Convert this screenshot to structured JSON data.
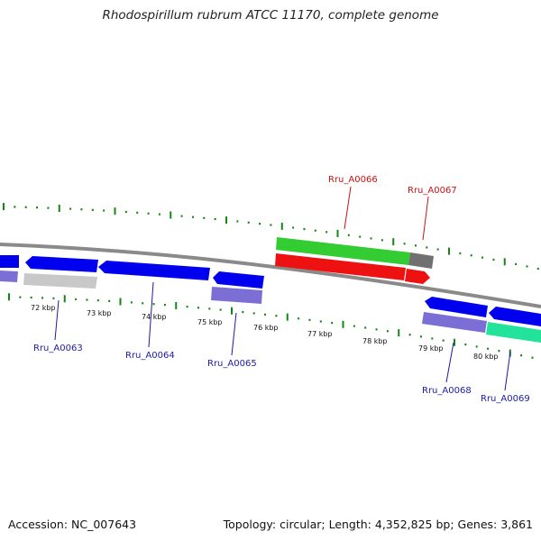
{
  "title": "Rhodospirillum rubrum ATCC 11170, complete genome",
  "footer": {
    "accession": "Accession: NC_007643",
    "summary": "Topology: circular; Length: 4,352,825 bp; Genes: 3,861"
  },
  "colors": {
    "backbone": "#8a8a8a",
    "tick": "#118811",
    "forward_cds": "#0000ee",
    "forward_cds_alt": "#7b6fd6",
    "reverse_cds": "#ee1111",
    "reverse_green": "#33cc33",
    "reverse_gray": "#707070",
    "pale_gray": "#c8c8c8",
    "mint": "#22e39a",
    "label_forward": "#1a1aa6",
    "label_reverse": "#cc1111"
  },
  "kbp_labels": [
    "72 kbp",
    "73 kbp",
    "74 kbp",
    "75 kbp",
    "76 kbp",
    "77 kbp",
    "78 kbp",
    "79 kbp",
    "80 kbp"
  ],
  "gene_labels": {
    "rru_a0066": "Rru_A0066",
    "rru_a0067": "Rru_A0067",
    "rru_a0063": "Rru_A0063",
    "rru_a0064": "Rru_A0064",
    "rru_a0065": "Rru_A0065",
    "rru_a0068": "Rru_A0068",
    "rru_a0069": "Rru_A0069"
  }
}
